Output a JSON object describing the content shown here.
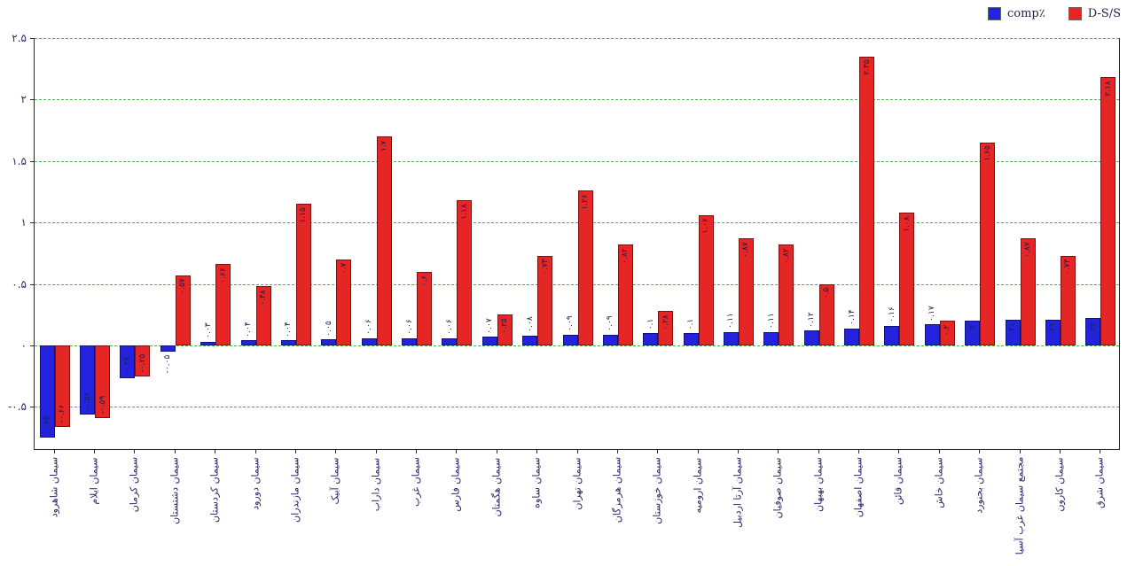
{
  "figure": {
    "background": "#ffffff"
  },
  "legend": {
    "position": "top-right",
    "items": [
      {
        "label": "comp٪",
        "color": "#2323dd"
      },
      {
        "label": "D-S/S",
        "color": "#e62525"
      }
    ]
  },
  "chart_data": {
    "type": "bar",
    "title": "",
    "xlabel": "",
    "ylabel": "",
    "grid": {
      "style": "dashed",
      "color": "#4db34d"
    },
    "legend_position": "top-right",
    "ylim": [
      -0.85,
      2.5
    ],
    "yticks": [
      {
        "value": 2.5,
        "label": "۲.۵"
      },
      {
        "value": 2,
        "label": "۲"
      },
      {
        "value": 1.5,
        "label": "۱.۵"
      },
      {
        "value": 1,
        "label": "۱"
      },
      {
        "value": 0.5,
        "label": "۰.۵"
      },
      {
        "value": 0,
        "label": "۰"
      },
      {
        "value": -0.5,
        "label": "-۰.۵"
      }
    ],
    "categories": [
      "سیمان شاهرود",
      "سیمان ایلام",
      "سیمان کرمان",
      "سیمان دشتستان",
      "سیمان کردستان",
      "سیمان دورود",
      "سیمان مازندران",
      "سیمان آبیک",
      "سیمان داراب",
      "سیمان غرب",
      "سیمان فارس",
      "سیمان هگمتان",
      "سیمان ساوه",
      "سیمان تهران",
      "سیمان هرمزگان",
      "سیمان خوزستان",
      "سیمان ارومیه",
      "سیمان آرتا اردبیل",
      "سیمان صوفیان",
      "سیمان بهبهان",
      "سیمان اصفهان",
      "سیمان قائن",
      "سیمان خاش",
      "سیمان بجنورد",
      "مجتمع سیمان غرب آسیا",
      "سیمان کارون",
      "سیمان شرق"
    ],
    "series": [
      {
        "name": "comp٪",
        "color": "#2323dd",
        "edge_color": "#12127e",
        "values": [
          -0.75,
          -0.56,
          -0.27,
          -0.05,
          0.03,
          0.04,
          0.04,
          0.05,
          0.06,
          0.06,
          0.06,
          0.07,
          0.08,
          0.09,
          0.09,
          0.1,
          0.1,
          0.11,
          0.11,
          0.12,
          0.14,
          0.16,
          0.17,
          0.2,
          0.21,
          0.21,
          0.22
        ]
      },
      {
        "name": "D-S/S",
        "color": "#e62525",
        "edge_color": "#7e1212",
        "values": [
          -0.66,
          -0.59,
          -0.25,
          0.57,
          0.66,
          0.48,
          1.15,
          0.7,
          1.7,
          0.6,
          1.18,
          0.25,
          0.73,
          1.26,
          0.82,
          0.28,
          1.06,
          0.87,
          0.82,
          0.5,
          2.35,
          1.08,
          0.2,
          1.65,
          0.87,
          0.73,
          2.18
        ]
      }
    ],
    "bar_label_digits": "persian"
  }
}
